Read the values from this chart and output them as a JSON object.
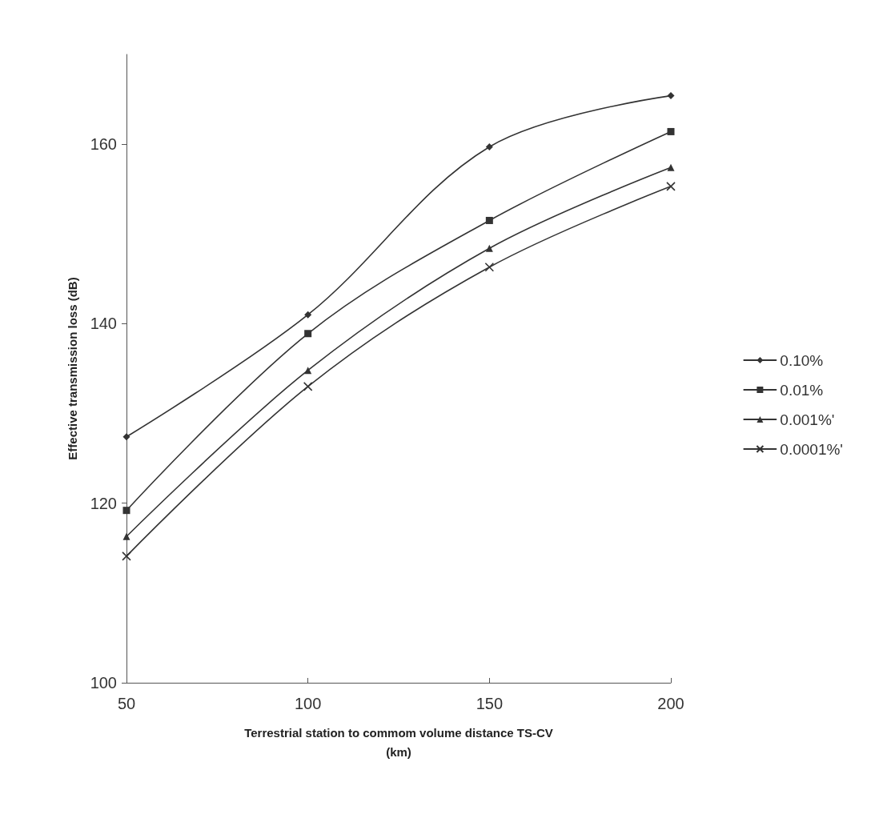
{
  "chart_data": {
    "type": "line",
    "xlabel": "Terrestrial station to commom volume distance TS-CV\n(km)",
    "ylabel": "Effective transmission loss (dB)",
    "x": [
      50,
      100,
      150,
      200
    ],
    "xlim": [
      50,
      200
    ],
    "xticks": [
      50,
      100,
      150,
      200
    ],
    "ylim": [
      100,
      170
    ],
    "yticks": [
      100,
      120,
      140,
      160
    ],
    "grid": false,
    "legend": "right",
    "line_style": "solid",
    "series": [
      {
        "name": "0.10%",
        "color": "#333333",
        "marker": "diamond",
        "values": [
          127.4,
          141.0,
          159.7,
          165.4
        ]
      },
      {
        "name": "0.01%",
        "color": "#333333",
        "marker": "square",
        "values": [
          119.2,
          138.9,
          151.5,
          161.4
        ]
      },
      {
        "name": "0.001%'",
        "color": "#333333",
        "marker": "triangle",
        "values": [
          116.3,
          134.8,
          148.4,
          157.4
        ]
      },
      {
        "name": "0.0001%'",
        "color": "#333333",
        "marker": "cross",
        "values": [
          114.1,
          133.0,
          146.3,
          155.3
        ]
      }
    ]
  }
}
